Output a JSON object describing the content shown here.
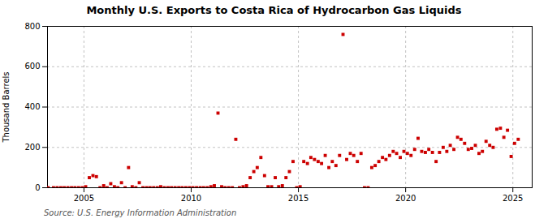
{
  "chart_data": {
    "type": "scatter",
    "title": "Monthly U.S. Exports to Costa Rica of Hydrocarbon Gas Liquids",
    "ylabel": "Thousand Barrels",
    "annotations": [
      "Source: U.S. Energy Information Administration"
    ],
    "color": "#cc0000",
    "marker": "square",
    "grid": true,
    "xlim": [
      2003.3,
      2025.9
    ],
    "xticks": [
      2005,
      2010,
      2015,
      2020,
      2025
    ],
    "ylim": [
      0,
      800
    ],
    "yticks": [
      0,
      200,
      400,
      600,
      800
    ],
    "x": [
      2003.33,
      2003.58,
      2003.75,
      2003.92,
      2004.08,
      2004.25,
      2004.42,
      2004.58,
      2004.75,
      2004.92,
      2005.08,
      2005.25,
      2005.42,
      2005.58,
      2005.75,
      2005.92,
      2006.08,
      2006.25,
      2006.42,
      2006.58,
      2006.75,
      2006.92,
      2007.08,
      2007.25,
      2007.42,
      2007.58,
      2007.75,
      2007.92,
      2008.08,
      2008.25,
      2008.42,
      2008.58,
      2008.75,
      2008.92,
      2009.08,
      2009.25,
      2009.42,
      2009.58,
      2009.75,
      2009.92,
      2010.08,
      2010.25,
      2010.42,
      2010.58,
      2010.75,
      2010.92,
      2011.08,
      2011.25,
      2011.42,
      2011.58,
      2011.75,
      2011.92,
      2012.08,
      2012.25,
      2012.42,
      2012.58,
      2012.75,
      2012.92,
      2013.08,
      2013.25,
      2013.42,
      2013.58,
      2013.75,
      2013.92,
      2014.08,
      2014.25,
      2014.42,
      2014.58,
      2014.75,
      2014.92,
      2015.08,
      2015.25,
      2015.42,
      2015.58,
      2015.75,
      2015.92,
      2016.08,
      2016.25,
      2016.42,
      2016.58,
      2016.75,
      2016.92,
      2017.08,
      2017.25,
      2017.42,
      2017.58,
      2017.75,
      2017.92,
      2018.08,
      2018.25,
      2018.42,
      2018.58,
      2018.75,
      2018.92,
      2019.08,
      2019.25,
      2019.42,
      2019.58,
      2019.75,
      2019.92,
      2020.08,
      2020.25,
      2020.42,
      2020.58,
      2020.75,
      2020.92,
      2021.08,
      2021.25,
      2021.42,
      2021.58,
      2021.75,
      2021.92,
      2022.08,
      2022.25,
      2022.42,
      2022.58,
      2022.75,
      2022.92,
      2023.08,
      2023.25,
      2023.42,
      2023.58,
      2023.75,
      2023.92,
      2024.08,
      2024.25,
      2024.42,
      2024.58,
      2024.75,
      2024.92,
      2025.08,
      2025.25
    ],
    "values": [
      0,
      0,
      0,
      0,
      0,
      0,
      0,
      0,
      0,
      0,
      5,
      50,
      60,
      55,
      0,
      10,
      0,
      20,
      5,
      0,
      25,
      0,
      100,
      5,
      0,
      25,
      0,
      0,
      0,
      0,
      0,
      5,
      0,
      0,
      0,
      0,
      0,
      0,
      0,
      0,
      0,
      0,
      0,
      0,
      0,
      5,
      10,
      370,
      5,
      0,
      0,
      0,
      240,
      0,
      5,
      10,
      50,
      80,
      100,
      150,
      60,
      5,
      5,
      50,
      5,
      10,
      50,
      80,
      130,
      0,
      5,
      130,
      120,
      150,
      140,
      130,
      120,
      160,
      100,
      130,
      110,
      160,
      760,
      140,
      170,
      160,
      130,
      170,
      0,
      0,
      100,
      110,
      130,
      150,
      140,
      160,
      180,
      170,
      150,
      180,
      170,
      160,
      190,
      245,
      180,
      175,
      190,
      175,
      130,
      175,
      200,
      180,
      210,
      190,
      250,
      240,
      220,
      190,
      195,
      210,
      170,
      180,
      230,
      210,
      200,
      290,
      295,
      250,
      285,
      155,
      220,
      240
    ]
  }
}
